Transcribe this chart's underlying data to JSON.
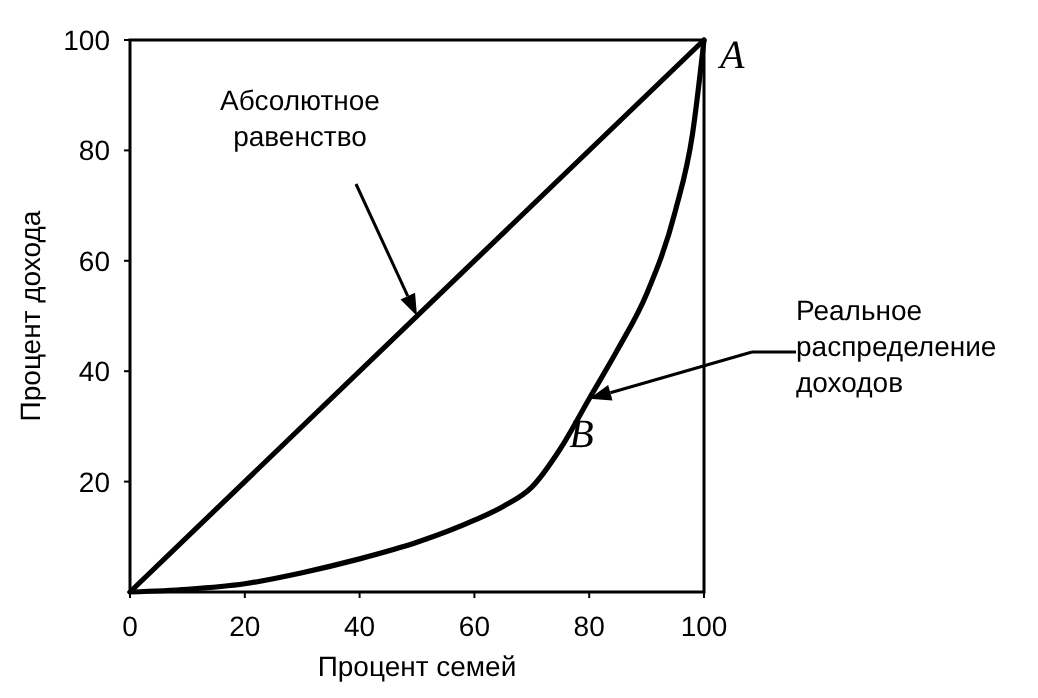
{
  "chart_data": {
    "type": "line",
    "xlabel": "Процент семей",
    "ylabel": "Процент дохода",
    "xlim": [
      0,
      100
    ],
    "ylim": [
      0,
      100
    ],
    "xticks": [
      0,
      20,
      40,
      60,
      80,
      100
    ],
    "yticks": [
      20,
      40,
      60,
      80,
      100
    ],
    "grid": false,
    "marker": "none",
    "line_style": "solid",
    "series": [
      {
        "color": "#000000",
        "x": [
          0,
          100
        ],
        "values": [
          0,
          100
        ]
      },
      {
        "color": "#000000",
        "x": [
          0,
          10,
          20,
          30,
          40,
          50,
          60,
          65,
          70,
          75,
          80,
          85,
          90,
          95,
          98,
          100
        ],
        "values": [
          0,
          0.5,
          1.5,
          3.5,
          6,
          9,
          13,
          15.5,
          19,
          26,
          35,
          44,
          54,
          69,
          83,
          100
        ]
      }
    ],
    "annotations": [
      "Абсолютное равенство",
      "Реальное распределение доходов",
      {
        "text": "A",
        "x": 100,
        "y": 100
      },
      {
        "text": "B",
        "x": 80,
        "y": 35
      }
    ]
  }
}
